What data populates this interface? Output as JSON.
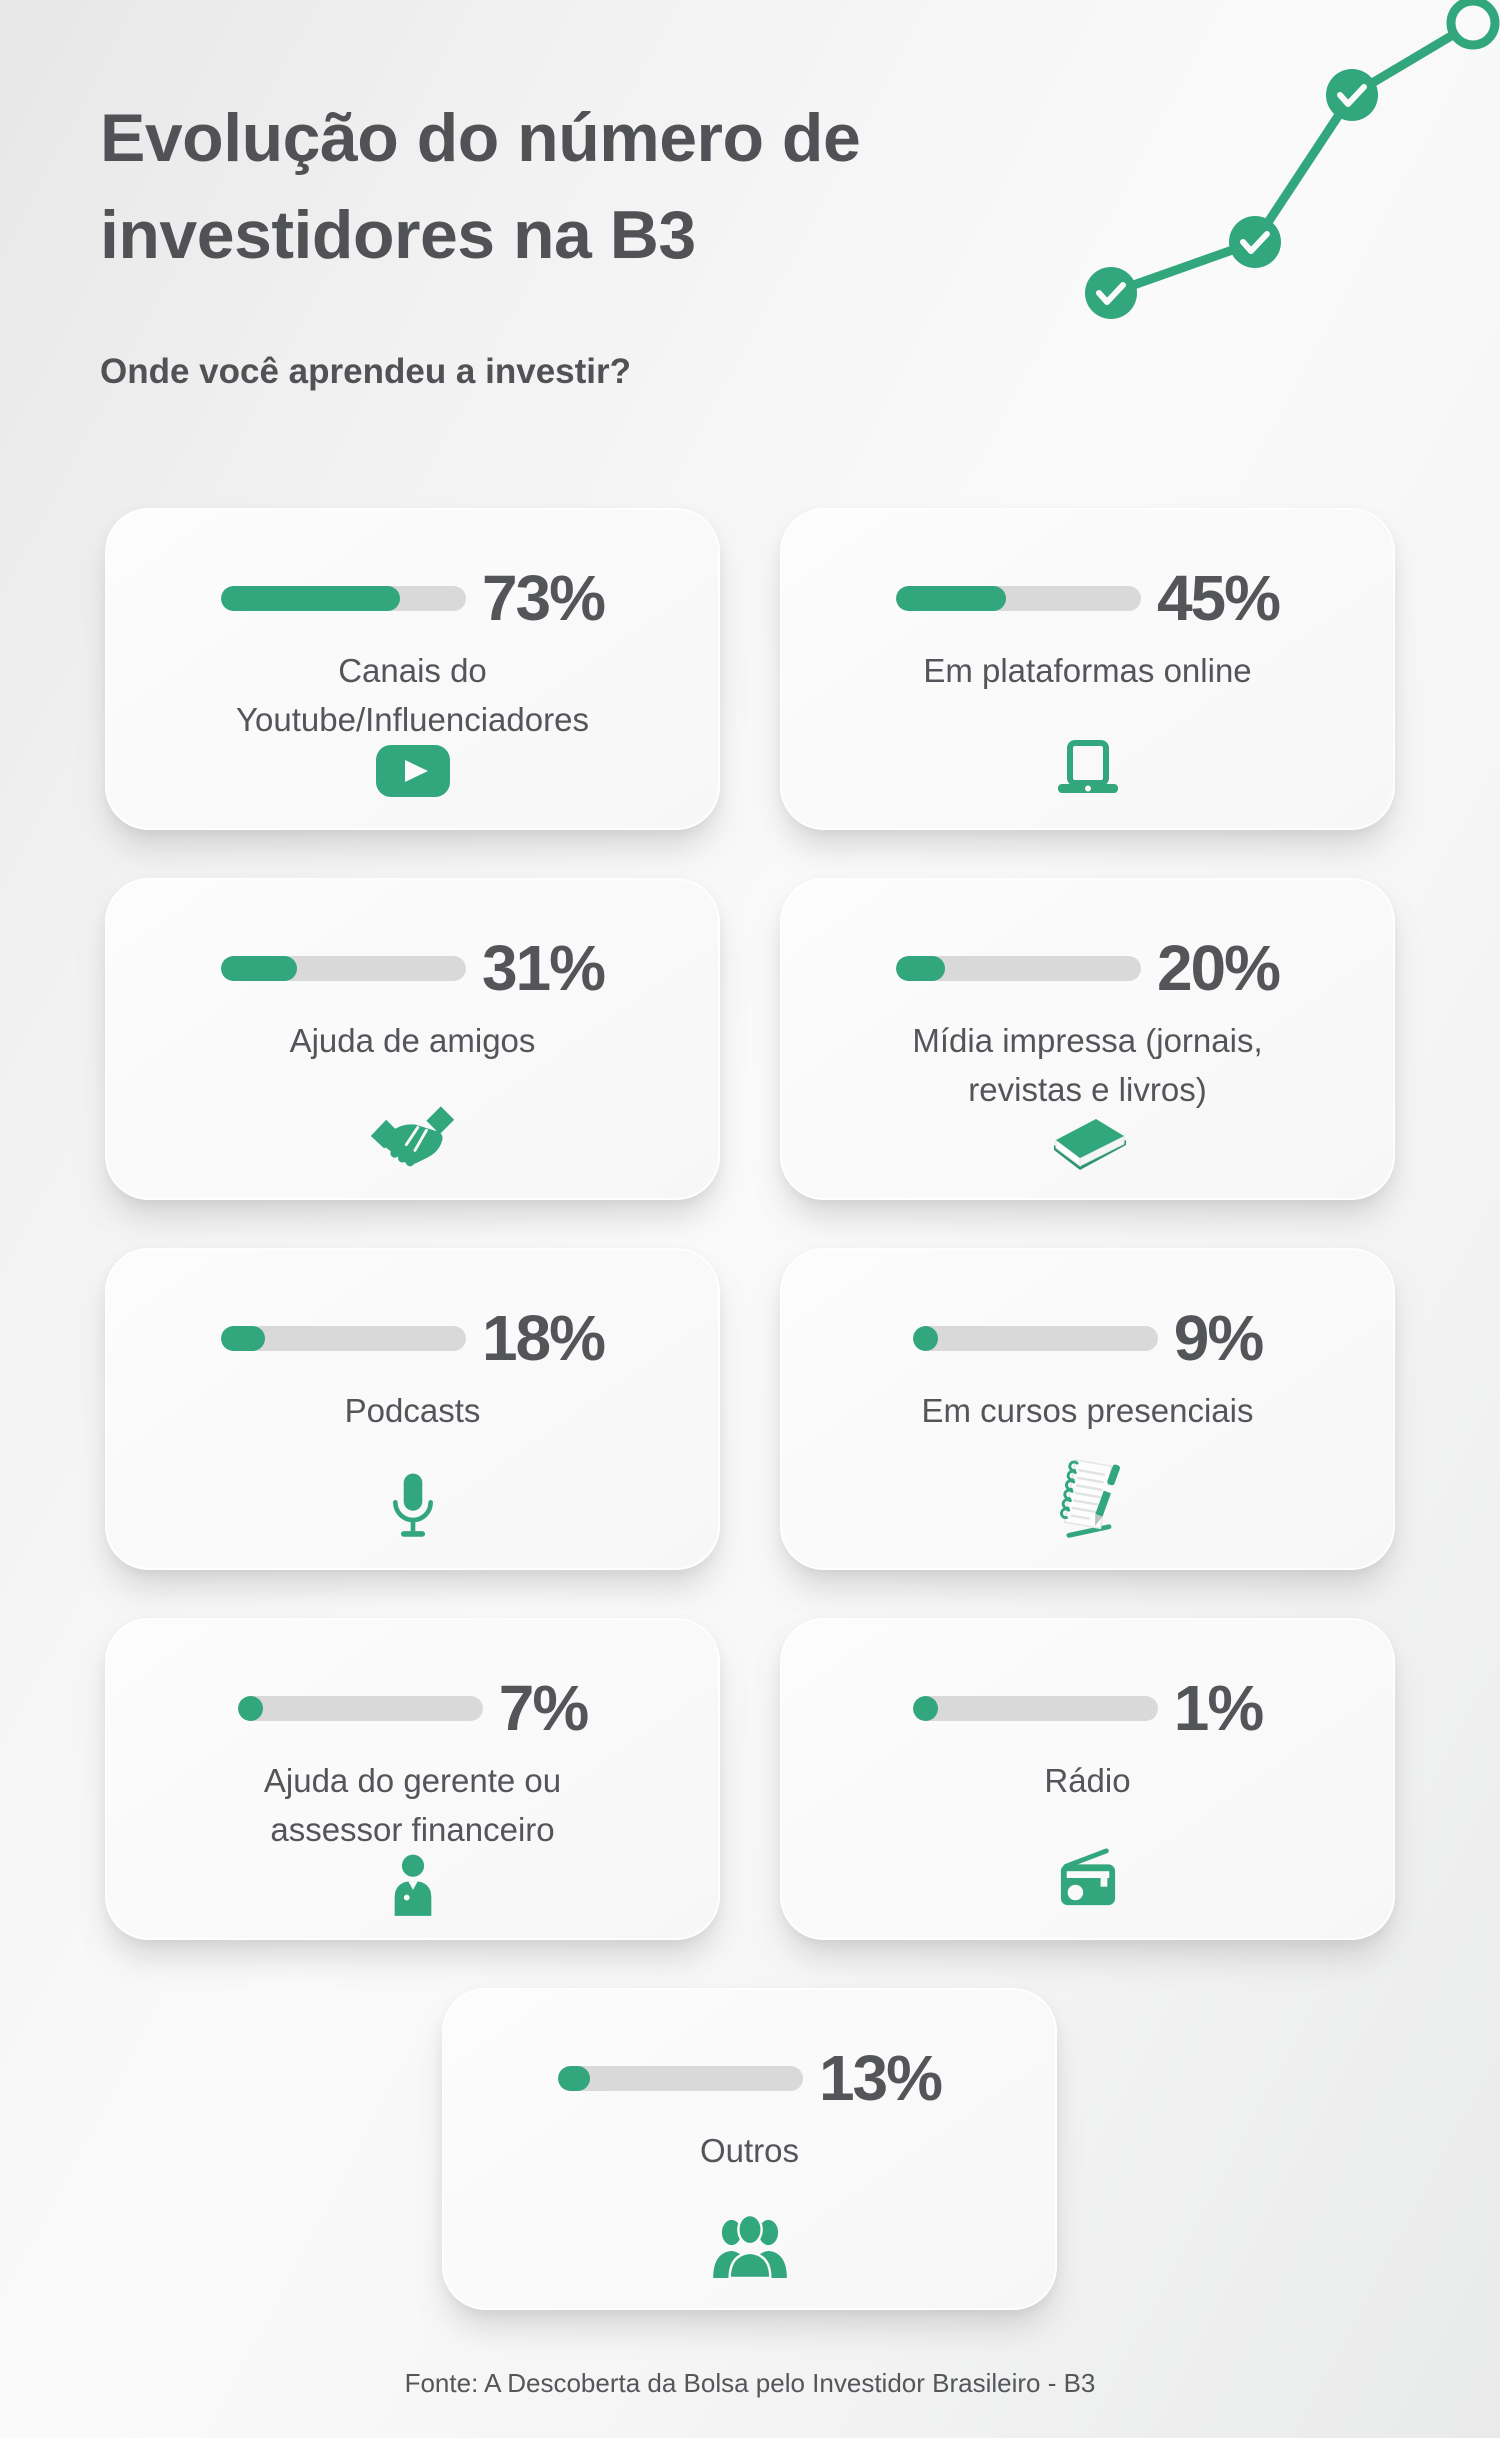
{
  "page": {
    "title_line1": "Evolução do número de",
    "title_line2": "investidores na B3",
    "subtitle": "Onde você aprendeu a investir?",
    "footer": "Fonte: A Descoberta da Bolsa pelo Investidor Brasileiro - B3"
  },
  "colors": {
    "accent_green": "#32a67c",
    "track_gray": "#d9d9d9",
    "text_dark": "#515256"
  },
  "decoration": {
    "name": "ascending-line-with-checkpoints",
    "checkpoints": 3,
    "endpoint": "open-circle"
  },
  "cards": [
    {
      "pct": "73%",
      "value": 73,
      "icon": "youtube-icon",
      "lines": [
        "Canais do",
        "Youtube/Influenciadores"
      ]
    },
    {
      "pct": "45%",
      "value": 45,
      "icon": "laptop-icon",
      "lines": [
        "Em plataformas online"
      ]
    },
    {
      "pct": "31%",
      "value": 31,
      "icon": "handshake-icon",
      "lines": [
        "Ajuda de amigos"
      ]
    },
    {
      "pct": "20%",
      "value": 20,
      "icon": "book-icon",
      "lines": [
        "Mídia impressa (jornais,",
        "revistas e livros)"
      ]
    },
    {
      "pct": "18%",
      "value": 18,
      "icon": "microphone-icon",
      "lines": [
        "Podcasts"
      ]
    },
    {
      "pct": "9%",
      "value": 9,
      "icon": "notes-icon",
      "lines": [
        "Em cursos presenciais"
      ]
    },
    {
      "pct": "7%",
      "value": 7,
      "icon": "person-icon",
      "lines": [
        "Ajuda do gerente ou",
        "assessor financeiro"
      ]
    },
    {
      "pct": "1%",
      "value": 1,
      "icon": "radio-icon",
      "lines": [
        "Rádio"
      ]
    },
    {
      "pct": "13%",
      "value": 13,
      "icon": "people-icon",
      "lines": [
        "Outros"
      ]
    }
  ],
  "chart_data": {
    "type": "bar",
    "title": "Evolução do número de investidores na B3",
    "subtitle": "Onde você aprendeu a investir?",
    "categories": [
      "Canais do Youtube/Influenciadores",
      "Em plataformas online",
      "Ajuda de amigos",
      "Mídia impressa (jornais, revistas e livros)",
      "Podcasts",
      "Em cursos presenciais",
      "Ajuda do gerente ou assessor financeiro",
      "Rádio",
      "Outros"
    ],
    "values": [
      73,
      45,
      31,
      20,
      18,
      9,
      7,
      1,
      13
    ],
    "unit": "%",
    "xlabel": "",
    "ylabel": "",
    "xlim": [
      0,
      100
    ],
    "grid": false,
    "legend": false,
    "source": "Fonte: A Descoberta da Bolsa pelo Investidor Brasileiro - B3"
  }
}
